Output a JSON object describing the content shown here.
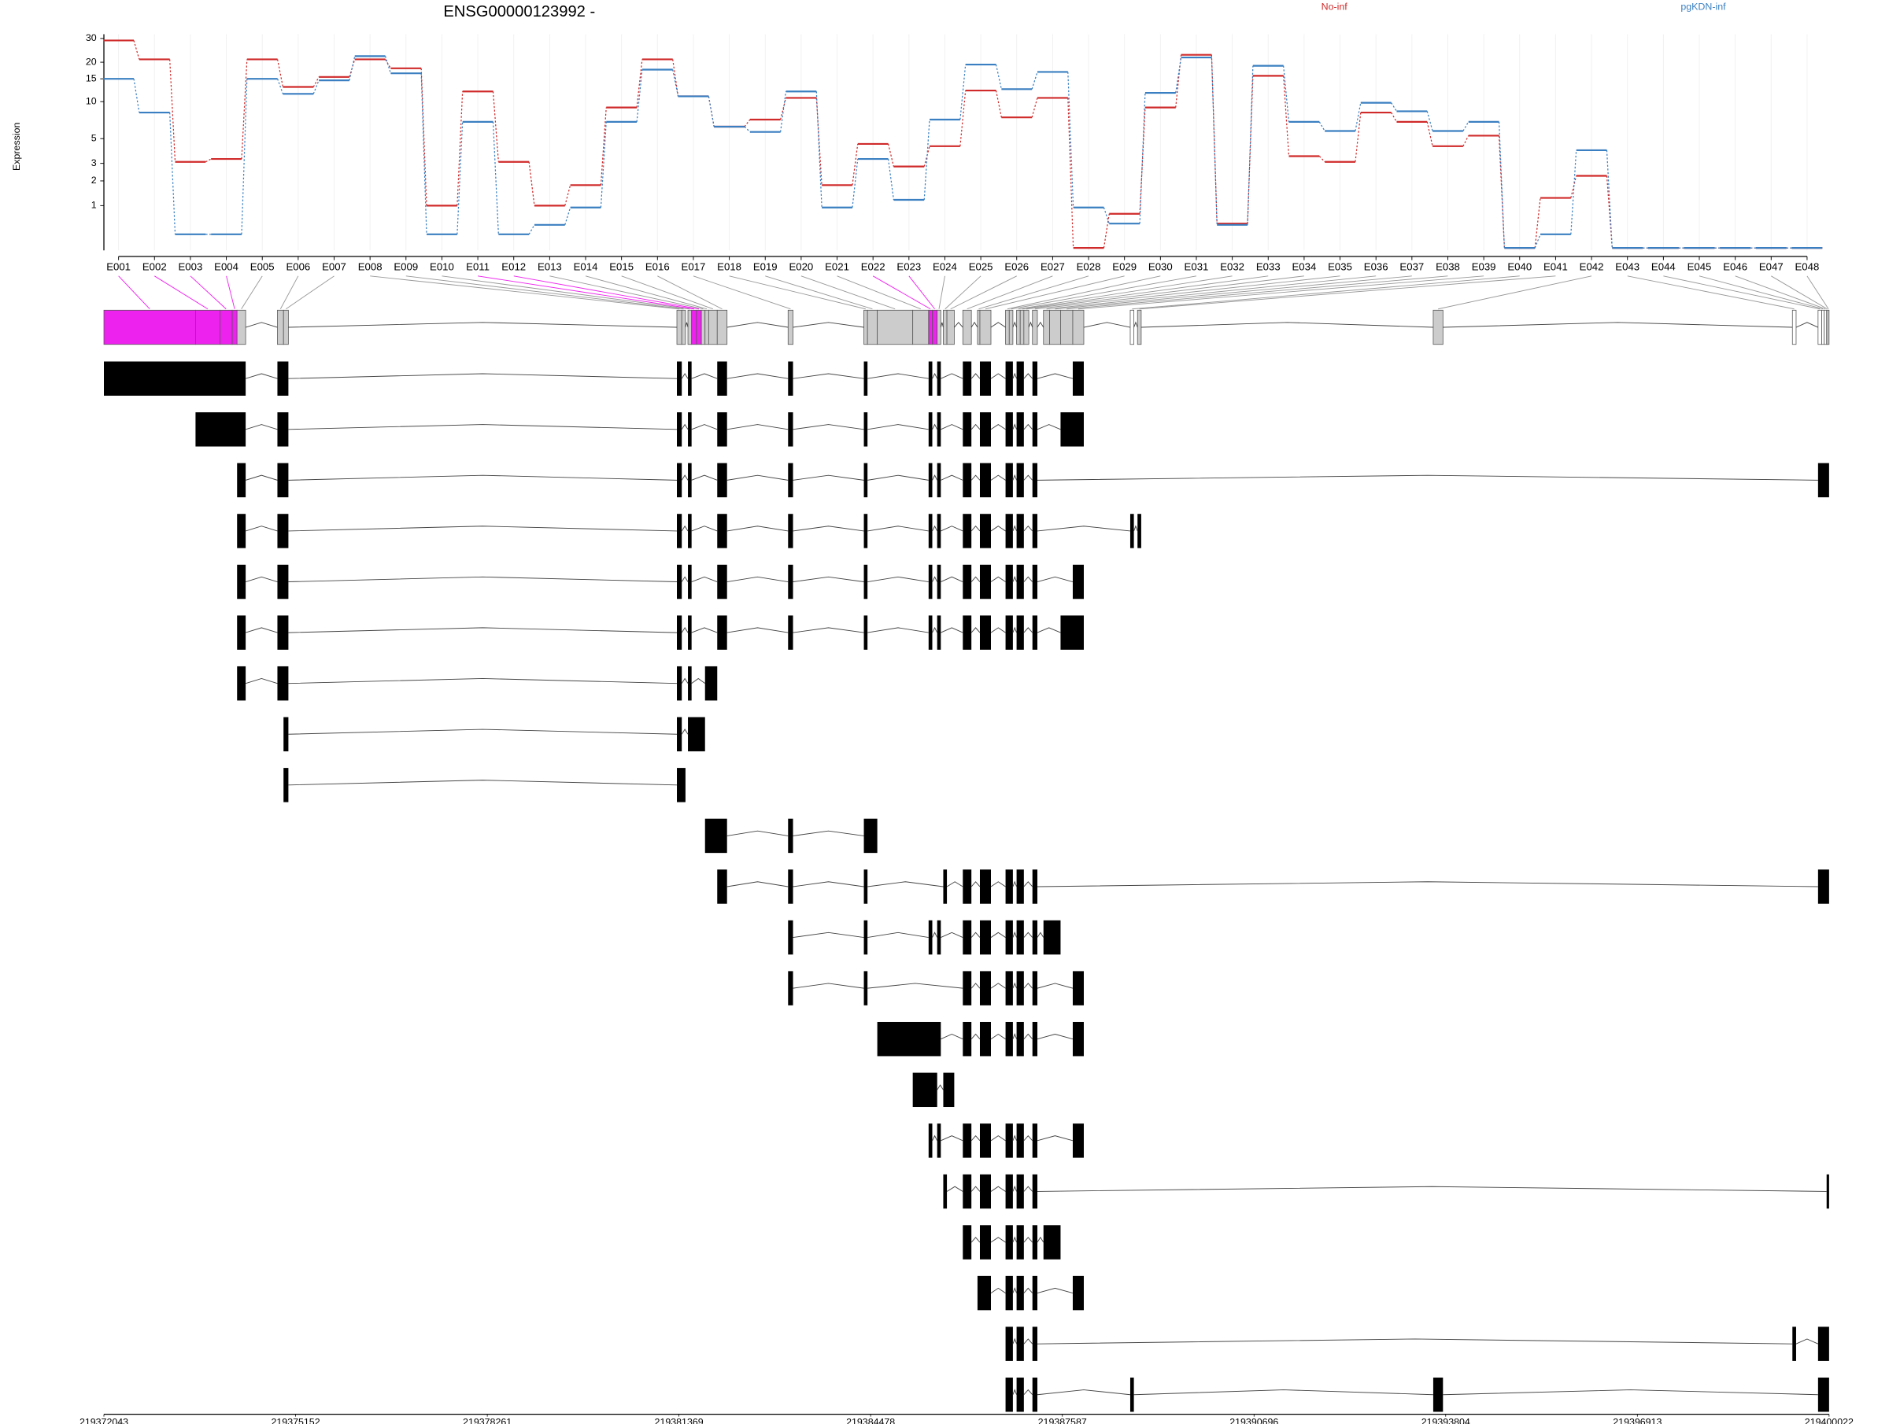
{
  "chart_data": {
    "type": "line",
    "title": "ENSG00000123992 -",
    "ylabel": "Expression",
    "yscale": "log1p",
    "ylim": [
      0,
      32
    ],
    "yticks": [
      1,
      2,
      3,
      5,
      10,
      15,
      20,
      30
    ],
    "grid": true,
    "categories": [
      "E001",
      "E002",
      "E003",
      "E004",
      "E005",
      "E006",
      "E007",
      "E008",
      "E009",
      "E010",
      "E011",
      "E012",
      "E013",
      "E014",
      "E015",
      "E016",
      "E017",
      "E018",
      "E019",
      "E020",
      "E021",
      "E022",
      "E023",
      "E024",
      "E025",
      "E026",
      "E027",
      "E028",
      "E029",
      "E030",
      "E031",
      "E032",
      "E033",
      "E034",
      "E035",
      "E036",
      "E037",
      "E038",
      "E039",
      "E040",
      "E041",
      "E042",
      "E043",
      "E044",
      "E045",
      "E046",
      "E047",
      "E048"
    ],
    "series": [
      {
        "name": "No-inf",
        "color": "#d02a2a",
        "values": [
          29,
          21,
          3.1,
          3.3,
          21,
          13,
          15.5,
          21,
          18,
          1.0,
          12,
          3.1,
          1.0,
          1.8,
          9.0,
          21,
          11,
          6.3,
          7.2,
          10.7,
          1.8,
          4.5,
          2.8,
          4.3,
          12.2,
          7.5,
          10.7,
          0,
          0.75,
          9.0,
          22.7,
          0.49,
          15.8,
          3.5,
          3.1,
          8.2,
          6.9,
          4.3,
          5.3,
          0,
          1.27,
          2.26,
          0,
          0,
          0,
          0,
          0,
          0
        ]
      },
      {
        "name": "pgKDN-inf",
        "color": "#3a7fc1",
        "values": [
          15,
          8.2,
          0.25,
          0.25,
          15,
          11.5,
          14.6,
          22.2,
          16.5,
          0.25,
          6.9,
          0.25,
          0.46,
          0.94,
          6.9,
          17.6,
          11,
          6.3,
          5.7,
          12,
          0.94,
          3.3,
          1.2,
          7.2,
          19.2,
          12.5,
          16.9,
          0.94,
          0.49,
          11.7,
          21.7,
          0.46,
          18.8,
          6.9,
          5.8,
          9.8,
          8.4,
          5.8,
          6.9,
          0,
          0.25,
          3.96,
          0,
          0,
          0,
          0,
          0,
          0
        ]
      }
    ],
    "significant": [
      true,
      true,
      true,
      true,
      false,
      false,
      false,
      false,
      false,
      false,
      true,
      true,
      false,
      false,
      false,
      false,
      false,
      false,
      false,
      false,
      false,
      true,
      true,
      false,
      false,
      false,
      false,
      false,
      false,
      false,
      false,
      false,
      false,
      false,
      false,
      false,
      false,
      false,
      false,
      false,
      false,
      false,
      false,
      false,
      false,
      false,
      false,
      false
    ],
    "highlight_color": "#ee22ee",
    "exons": [
      [
        219372043,
        219373529
      ],
      [
        219373529,
        219373925
      ],
      [
        219373925,
        219374124
      ],
      [
        219374124,
        219374203
      ],
      [
        219374203,
        219374342
      ],
      [
        219374857,
        219374956
      ],
      [
        219374956,
        219375035
      ],
      [
        219381336,
        219381415
      ],
      [
        219381415,
        219381475
      ],
      [
        219381515,
        219381574
      ],
      [
        219381574,
        219381653
      ],
      [
        219381653,
        219381733
      ],
      [
        219381733,
        219381792
      ],
      [
        219381792,
        219381851
      ],
      [
        219381851,
        219381990
      ],
      [
        219381990,
        219382149
      ],
      [
        219383139,
        219383219
      ],
      [
        219384368,
        219384427
      ],
      [
        219384427,
        219384586
      ],
      [
        219384586,
        219385161
      ],
      [
        219385161,
        219385418
      ],
      [
        219385418,
        219385478
      ],
      [
        219385478,
        219385557
      ],
      [
        219385557,
        219385616
      ],
      [
        219385656,
        219385715
      ],
      [
        219385715,
        219385834
      ],
      [
        219385973,
        219386112
      ],
      [
        219386211,
        219386250
      ],
      [
        219386250,
        219386429
      ],
      [
        219386666,
        219386726
      ],
      [
        219386726,
        219386785
      ],
      [
        219386845,
        219386904
      ],
      [
        219386904,
        219386963
      ],
      [
        219386963,
        219387043
      ],
      [
        219387102,
        219387182
      ],
      [
        219387281,
        219387380
      ],
      [
        219387380,
        219387558
      ],
      [
        219387558,
        219387756
      ],
      [
        219387756,
        219387935
      ],
      [
        219388688,
        219388747
      ],
      [
        219388806,
        219388866
      ],
      [
        219393602,
        219393760
      ],
      [
        219399427,
        219399487
      ],
      [
        219399843,
        219399903
      ],
      [
        219399903,
        219399943
      ],
      [
        219399943,
        219399982
      ],
      [
        219399982,
        219400002
      ],
      [
        219400002,
        219400022
      ]
    ],
    "transcripts": [
      [
        0,
        1,
        2,
        3,
        4,
        5,
        6,
        7,
        9,
        15,
        16,
        17,
        21,
        23,
        26,
        28,
        29,
        30,
        31,
        32,
        34,
        38
      ],
      [
        1,
        2,
        3,
        4,
        5,
        6,
        7,
        9,
        15,
        16,
        17,
        21,
        23,
        26,
        28,
        29,
        30,
        31,
        32,
        34,
        37,
        38
      ],
      [
        4,
        5,
        6,
        7,
        9,
        15,
        16,
        17,
        21,
        23,
        26,
        28,
        29,
        30,
        31,
        32,
        34,
        43,
        44,
        45,
        46,
        47
      ],
      [
        4,
        5,
        6,
        7,
        9,
        15,
        16,
        17,
        21,
        23,
        26,
        28,
        29,
        30,
        31,
        32,
        34,
        39,
        40
      ],
      [
        4,
        5,
        6,
        7,
        9,
        15,
        16,
        17,
        21,
        23,
        26,
        28,
        29,
        30,
        31,
        32,
        34,
        38
      ],
      [
        4,
        5,
        6,
        7,
        9,
        15,
        16,
        17,
        21,
        23,
        26,
        28,
        29,
        30,
        31,
        32,
        34,
        37,
        38
      ],
      [
        4,
        5,
        6,
        7,
        9,
        13,
        14
      ],
      [
        6,
        7,
        9,
        10,
        11,
        12
      ],
      [
        6,
        7,
        8
      ],
      [
        13,
        14,
        15,
        16,
        17,
        18
      ],
      [
        15,
        16,
        17,
        24,
        26,
        28,
        29,
        30,
        31,
        32,
        34,
        43,
        44,
        45,
        46,
        47
      ],
      [
        16,
        17,
        21,
        23,
        26,
        28,
        29,
        30,
        31,
        32,
        34,
        35,
        36
      ],
      [
        16,
        17,
        26,
        28,
        29,
        30,
        31,
        32,
        34,
        38
      ],
      [
        19,
        20,
        21,
        22,
        23,
        26,
        28,
        29,
        30,
        31,
        32,
        34,
        38
      ],
      [
        20,
        21,
        22,
        24,
        25
      ],
      [
        21,
        23,
        26,
        28,
        29,
        30,
        31,
        32,
        34,
        38
      ],
      [
        24,
        26,
        28,
        29,
        30,
        31,
        32,
        34,
        46,
        47
      ],
      [
        26,
        28,
        29,
        30,
        31,
        32,
        34,
        35,
        36
      ],
      [
        27,
        28,
        29,
        30,
        31,
        32,
        34,
        38
      ],
      [
        29,
        30,
        31,
        32,
        34,
        42,
        43,
        44,
        45,
        46,
        47
      ],
      [
        29,
        30,
        31,
        32,
        34,
        39,
        41,
        43,
        44,
        45,
        46,
        47
      ]
    ],
    "genomic_xlim": [
      219372043,
      219400022
    ],
    "genomic_ticks": [
      219372043,
      219375152,
      219378261,
      219381369,
      219384478,
      219387587,
      219390696,
      219393804,
      219396913,
      219400022
    ]
  }
}
